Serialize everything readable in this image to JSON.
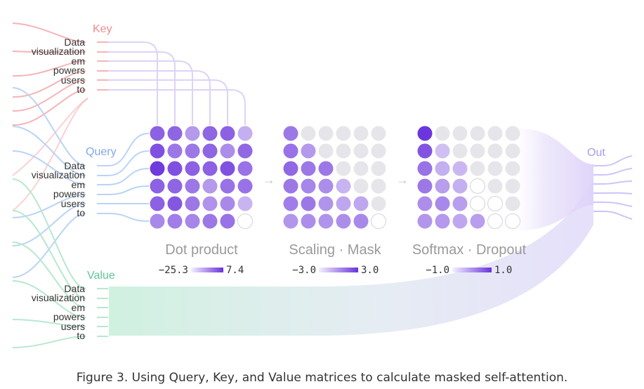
{
  "tokens": [
    "Data",
    "visualization",
    "em",
    "powers",
    "users",
    "to"
  ],
  "labels": {
    "key": "Key",
    "query": "Query",
    "value": "Value",
    "out": "Out"
  },
  "stages": [
    {
      "title": "Dot product",
      "range": {
        "min": "−25.3",
        "max": "7.4"
      }
    },
    {
      "title": "Scaling · Mask",
      "range": {
        "min": "−3.0",
        "max": "3.0"
      }
    },
    {
      "title": "Softmax · Dropout",
      "range": {
        "min": "−1.0",
        "max": "1.0"
      }
    }
  ],
  "arrow_glyph": "→",
  "matrices": {
    "dot_product": [
      [
        0.72,
        0.7,
        0.38,
        0.7,
        0.72,
        0.25
      ],
      [
        0.82,
        0.58,
        0.58,
        0.7,
        0.45,
        0.68
      ],
      [
        0.95,
        0.82,
        0.72,
        0.72,
        0.82,
        0.62
      ],
      [
        0.72,
        0.7,
        0.58,
        0.38,
        0.62,
        0.62
      ],
      [
        0.72,
        0.78,
        0.58,
        0.42,
        0.48,
        0.22
      ],
      [
        0.48,
        0.55,
        0.5,
        0.58,
        0.62,
        -1
      ]
    ],
    "scaling_mask": [
      [
        0.58,
        0,
        0,
        0,
        0,
        0
      ],
      [
        0.62,
        0.38,
        0,
        0,
        0,
        0
      ],
      [
        0.68,
        0.58,
        0.58,
        0,
        0,
        0
      ],
      [
        0.58,
        0.5,
        0.45,
        0.22,
        0,
        0
      ],
      [
        0.55,
        0.58,
        0.42,
        0.3,
        0.3,
        0
      ],
      [
        0.4,
        0.45,
        0.42,
        0.45,
        0.48,
        -1
      ]
    ],
    "softmax_dropout": [
      [
        0.98,
        0,
        0,
        0,
        0,
        0
      ],
      [
        0.8,
        0.15,
        0,
        0,
        0,
        0
      ],
      [
        0.62,
        0.25,
        0.2,
        0,
        0,
        0
      ],
      [
        0.58,
        0.35,
        0.25,
        -1,
        0,
        0
      ],
      [
        0.45,
        0.48,
        0.35,
        -1,
        -1,
        0
      ],
      [
        0.4,
        0.38,
        0.3,
        0.35,
        -1,
        -1
      ]
    ]
  },
  "colors": {
    "key_line": "#f6b4b6",
    "query_line": "#bad4f5",
    "value_line": "#b7e8cf",
    "key_label": "#f08a8c",
    "query_label": "#7fa9e8",
    "value_label": "#5ec497",
    "out_label": "#a99bf0",
    "accent": "#6a33db",
    "empty_cell": "#e6e6ea",
    "stage_title": "#9a9a9a",
    "token_text": "#333333"
  },
  "caption": "Figure 3. Using Query, Key, and Value matrices to calculate masked self-attention."
}
